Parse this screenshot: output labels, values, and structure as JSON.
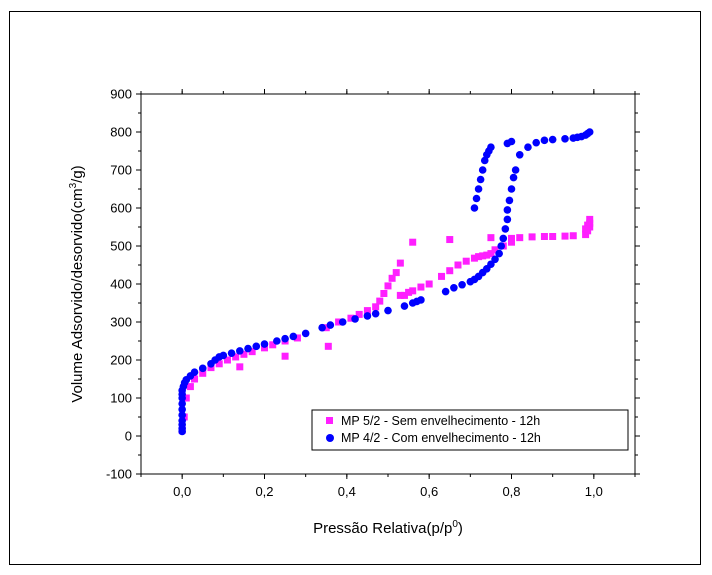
{
  "chart_data": {
    "type": "scatter",
    "xlabel": "Pressão Relativa(p/p",
    "xlabel_sup": "0",
    "xlabel_end": ")",
    "ylabel": "Volume Adsorvido/desorvido(cm",
    "ylabel_sup": "3",
    "ylabel_end": "/g)",
    "xlim": [
      -0.1,
      1.1
    ],
    "ylim": [
      -100,
      900
    ],
    "xticks": [
      0.0,
      0.2,
      0.4,
      0.6,
      0.8,
      1.0
    ],
    "xtick_labels": [
      "0,0",
      "0,2",
      "0,4",
      "0,6",
      "0,8",
      "1,0"
    ],
    "yticks": [
      -100,
      0,
      100,
      200,
      300,
      400,
      500,
      600,
      700,
      800,
      900
    ],
    "ytick_labels": [
      "-100",
      "0",
      "100",
      "200",
      "300",
      "400",
      "500",
      "600",
      "700",
      "800",
      "900"
    ],
    "grid": false,
    "legend_position": "bottom-right",
    "series": [
      {
        "name": "MP 5/2 - Sem envelhecimento - 12h",
        "color": "#ff1fff",
        "marker": "square",
        "x": [
          0.0,
          0.005,
          0.01,
          0.02,
          0.03,
          0.05,
          0.07,
          0.09,
          0.11,
          0.13,
          0.15,
          0.17,
          0.2,
          0.22,
          0.25,
          0.28,
          0.35,
          0.38,
          0.41,
          0.43,
          0.45,
          0.47,
          0.48,
          0.49,
          0.5,
          0.51,
          0.52,
          0.53,
          0.56,
          0.54,
          0.55,
          0.58,
          0.6,
          0.63,
          0.65,
          0.67,
          0.69,
          0.71,
          0.72,
          0.73,
          0.74,
          0.75,
          0.76,
          0.78,
          0.8,
          0.8,
          0.82,
          0.85,
          0.88,
          0.9,
          0.93,
          0.95,
          0.98,
          0.985,
          0.99,
          0.99,
          0.99,
          0.985,
          0.98,
          0.14,
          0.25,
          0.355,
          0.53,
          0.56,
          0.65,
          0.75
        ],
        "y": [
          15,
          50,
          100,
          130,
          150,
          165,
          180,
          190,
          200,
          208,
          215,
          222,
          232,
          240,
          250,
          258,
          285,
          300,
          310,
          320,
          330,
          340,
          355,
          375,
          395,
          415,
          430,
          455,
          510,
          370,
          378,
          392,
          400,
          420,
          435,
          450,
          460,
          468,
          472,
          474,
          476,
          480,
          490,
          500,
          510,
          520,
          522,
          524,
          525,
          525,
          526,
          527,
          530,
          540,
          550,
          560,
          570,
          555,
          545,
          182,
          210,
          236,
          370,
          382,
          517,
          522
        ]
      },
      {
        "name": "MP 4/2 - Com envelhecimento - 12h",
        "color": "#0000ff",
        "marker": "circle",
        "x": [
          0.0,
          0.0,
          0.0,
          0.0,
          0.0,
          0.0,
          0.0,
          0.0,
          0.0,
          0.0,
          0.003,
          0.006,
          0.01,
          0.02,
          0.03,
          0.05,
          0.07,
          0.08,
          0.09,
          0.1,
          0.12,
          0.14,
          0.16,
          0.18,
          0.2,
          0.23,
          0.25,
          0.27,
          0.3,
          0.34,
          0.36,
          0.39,
          0.42,
          0.45,
          0.47,
          0.5,
          0.54,
          0.56,
          0.57,
          0.58,
          0.64,
          0.66,
          0.68,
          0.7,
          0.71,
          0.72,
          0.73,
          0.74,
          0.75,
          0.76,
          0.77,
          0.775,
          0.78,
          0.785,
          0.79,
          0.79,
          0.795,
          0.8,
          0.805,
          0.81,
          0.82,
          0.84,
          0.86,
          0.88,
          0.9,
          0.93,
          0.95,
          0.96,
          0.97,
          0.98,
          0.985,
          0.99,
          0.71,
          0.715,
          0.72,
          0.725,
          0.73,
          0.735,
          0.74,
          0.745,
          0.75,
          0.79,
          0.8
        ],
        "y": [
          12,
          20,
          30,
          40,
          55,
          70,
          85,
          100,
          110,
          120,
          130,
          140,
          148,
          158,
          168,
          178,
          190,
          200,
          208,
          212,
          218,
          224,
          230,
          236,
          242,
          250,
          256,
          262,
          270,
          285,
          292,
          300,
          308,
          316,
          322,
          330,
          342,
          350,
          354,
          358,
          380,
          390,
          398,
          406,
          412,
          420,
          430,
          440,
          452,
          465,
          480,
          500,
          520,
          545,
          570,
          595,
          620,
          650,
          680,
          700,
          740,
          760,
          772,
          778,
          780,
          782,
          784,
          786,
          788,
          792,
          796,
          800,
          600,
          625,
          650,
          675,
          700,
          725,
          740,
          750,
          760,
          770,
          775
        ]
      }
    ]
  }
}
